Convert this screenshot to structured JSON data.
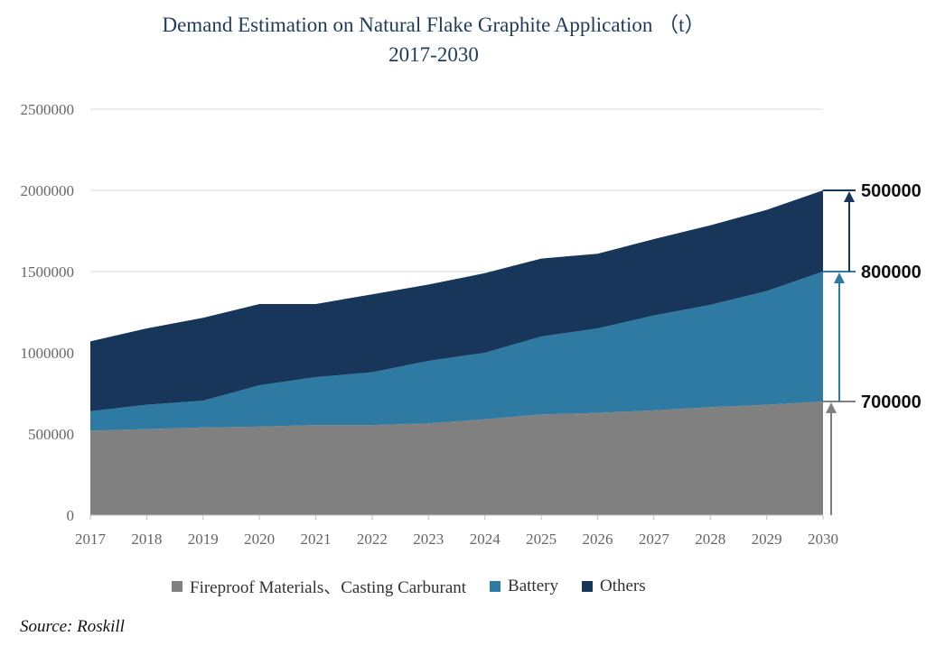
{
  "chart_data": {
    "type": "area",
    "stacked": true,
    "title": "Demand Estimation on Natural Flake Graphite Application （t）",
    "subtitle": "2017-2030",
    "x": [
      "2017",
      "2018",
      "2019",
      "2020",
      "2021",
      "2022",
      "2023",
      "2024",
      "2025",
      "2026",
      "2027",
      "2028",
      "2029",
      "2030"
    ],
    "ylim": [
      0,
      2500000
    ],
    "yticks": [
      0,
      500000,
      1000000,
      1500000,
      2000000,
      2500000
    ],
    "ytick_labels": [
      "0",
      "500000",
      "1000000",
      "1500000",
      "2000000",
      "2500000"
    ],
    "grid": true,
    "legend_position": "bottom",
    "series": [
      {
        "name": "Fireproof Materials、Casting Carburant",
        "color": "#808080",
        "values": [
          520000,
          530000,
          540000,
          545000,
          555000,
          555000,
          565000,
          590000,
          620000,
          630000,
          645000,
          665000,
          680000,
          700000
        ]
      },
      {
        "name": "Battery",
        "color": "#2e7aa2",
        "values": [
          120000,
          150000,
          165000,
          255000,
          295000,
          325000,
          385000,
          410000,
          480000,
          520000,
          585000,
          630000,
          700000,
          800000
        ]
      },
      {
        "name": "Others",
        "color": "#17365a",
        "values": [
          430000,
          470000,
          510000,
          500000,
          450000,
          480000,
          470000,
          490000,
          480000,
          460000,
          470000,
          490000,
          500000,
          500000
        ]
      }
    ],
    "annotations": [
      {
        "text": "700000",
        "from": 0,
        "to": 700000,
        "color": "#808080"
      },
      {
        "text": "800000",
        "from": 700000,
        "to": 1500000,
        "color": "#2e7aa2"
      },
      {
        "text": "500000",
        "from": 1500000,
        "to": 2000000,
        "color": "#17365a"
      }
    ]
  },
  "source": "Source: Roskill"
}
